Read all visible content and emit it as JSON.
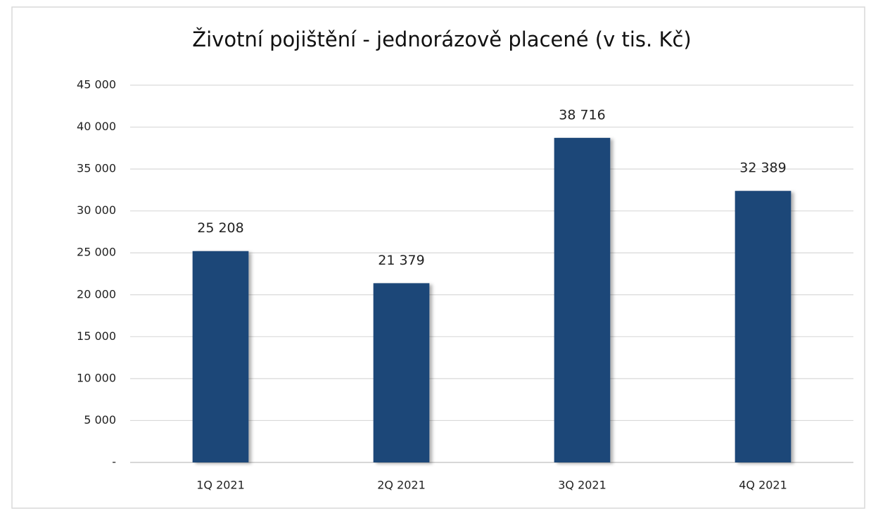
{
  "chart_data": {
    "type": "bar",
    "title": "Životní pojištění - jednorázově placené (v tis. Kč)",
    "categories": [
      "1Q 2021",
      "2Q 2021",
      "3Q 2021",
      "4Q 2021"
    ],
    "values": [
      25208,
      21379,
      38716,
      32389
    ],
    "value_labels": [
      "25 208",
      "21 379",
      "38 716",
      "32 389"
    ],
    "color": "#1f4678",
    "ylim": [
      0,
      45000
    ],
    "yticks": [
      {
        "value": 0,
        "label": "-"
      },
      {
        "value": 5000,
        "label": "5 000"
      },
      {
        "value": 10000,
        "label": "10 000"
      },
      {
        "value": 15000,
        "label": "15 000"
      },
      {
        "value": 20000,
        "label": "20 000"
      },
      {
        "value": 25000,
        "label": "25 000"
      },
      {
        "value": 30000,
        "label": "30 000"
      },
      {
        "value": 35000,
        "label": "35 000"
      },
      {
        "value": 40000,
        "label": "40 000"
      },
      {
        "value": 45000,
        "label": "45 000"
      }
    ],
    "grid": true
  }
}
